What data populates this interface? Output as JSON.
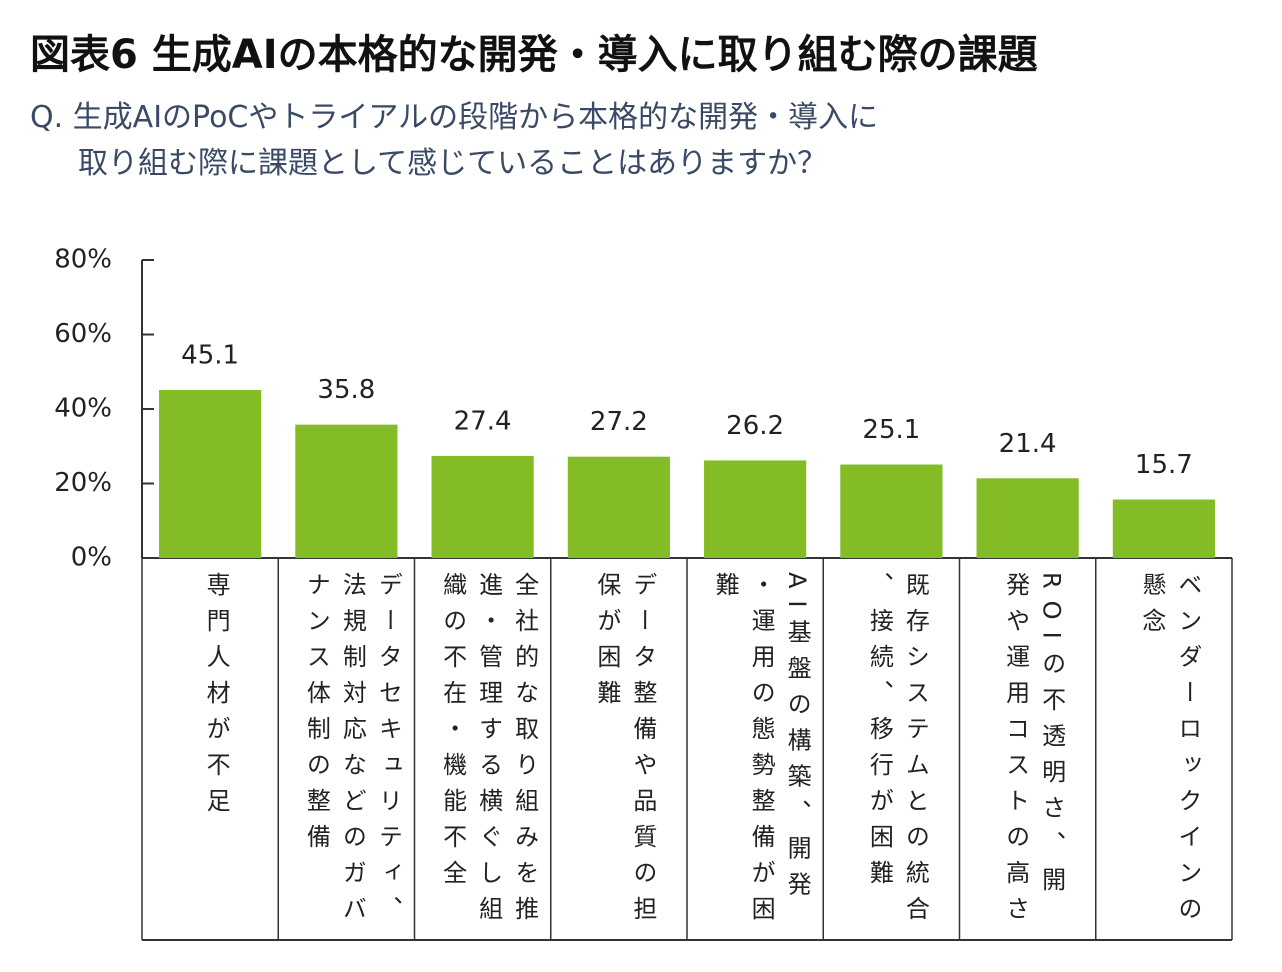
{
  "chart_data": {
    "type": "bar",
    "title": "図表6 生成AIの本格的な開発・導入に取り組む際の課題",
    "subtitle": [
      "Q. 生成AIのPoCやトライアルの段階から本格的な開発・導入に",
      "取り組む際に課題として感じていることはありますか？"
    ],
    "categories": [
      "専門人材が不足",
      "データセキュリティ、法規制対応などのガバナンス体制の整備",
      "全社的な取り組みを推進・管理する横ぐし組織の不在・機能不全",
      "データ整備や品質の担保が困難",
      "AI基盤の構築、開発・運用の態勢整備が困難",
      "既存システムとの統合、接続、移行が困難",
      "ROIの不透明さ、開発や運用コストの高さ",
      "ベンダーロックインの懸念"
    ],
    "values": [
      45.1,
      35.8,
      27.4,
      27.2,
      26.2,
      25.1,
      21.4,
      15.7
    ],
    "color": "#84bc26",
    "ylim": [
      0,
      80
    ],
    "yticks": [
      {
        "value": 0,
        "label": "0%"
      },
      {
        "value": 20,
        "label": "20%"
      },
      {
        "value": 40,
        "label": "40%"
      },
      {
        "value": 60,
        "label": "60%"
      },
      {
        "value": 80,
        "label": "80%"
      }
    ]
  }
}
